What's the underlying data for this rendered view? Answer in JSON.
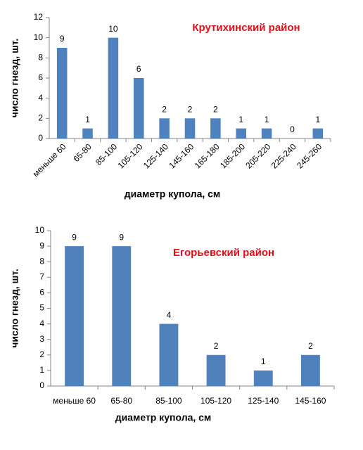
{
  "chart_data": [
    {
      "type": "bar",
      "title": "Крутихинский район",
      "x_label": "диаметр купола, см",
      "y_label": "число гнезд, шт.",
      "categories": [
        "меньше 60",
        "65-80",
        "85-100",
        "105-120",
        "125-140",
        "145-160",
        "165-180",
        "185-200",
        "205-220",
        "225-240",
        "245-260"
      ],
      "values": [
        9,
        1,
        10,
        6,
        2,
        2,
        2,
        1,
        1,
        0,
        1
      ],
      "color": "#4f81bd",
      "ylim": [
        0,
        12
      ],
      "yticks": [
        0,
        2,
        4,
        6,
        8,
        10,
        12
      ]
    },
    {
      "type": "bar",
      "title": "Егорьевский район",
      "x_label": "диаметр купола, см",
      "y_label": "число гнезд, шт.",
      "categories": [
        "меньше 60",
        "65-80",
        "85-100",
        "105-120",
        "125-140",
        "145-160"
      ],
      "values": [
        9,
        9,
        4,
        2,
        1,
        2
      ],
      "color": "#4f81bd",
      "ylim": [
        0,
        10
      ],
      "yticks": [
        0,
        1,
        2,
        3,
        4,
        5,
        6,
        7,
        8,
        9,
        10
      ]
    }
  ]
}
